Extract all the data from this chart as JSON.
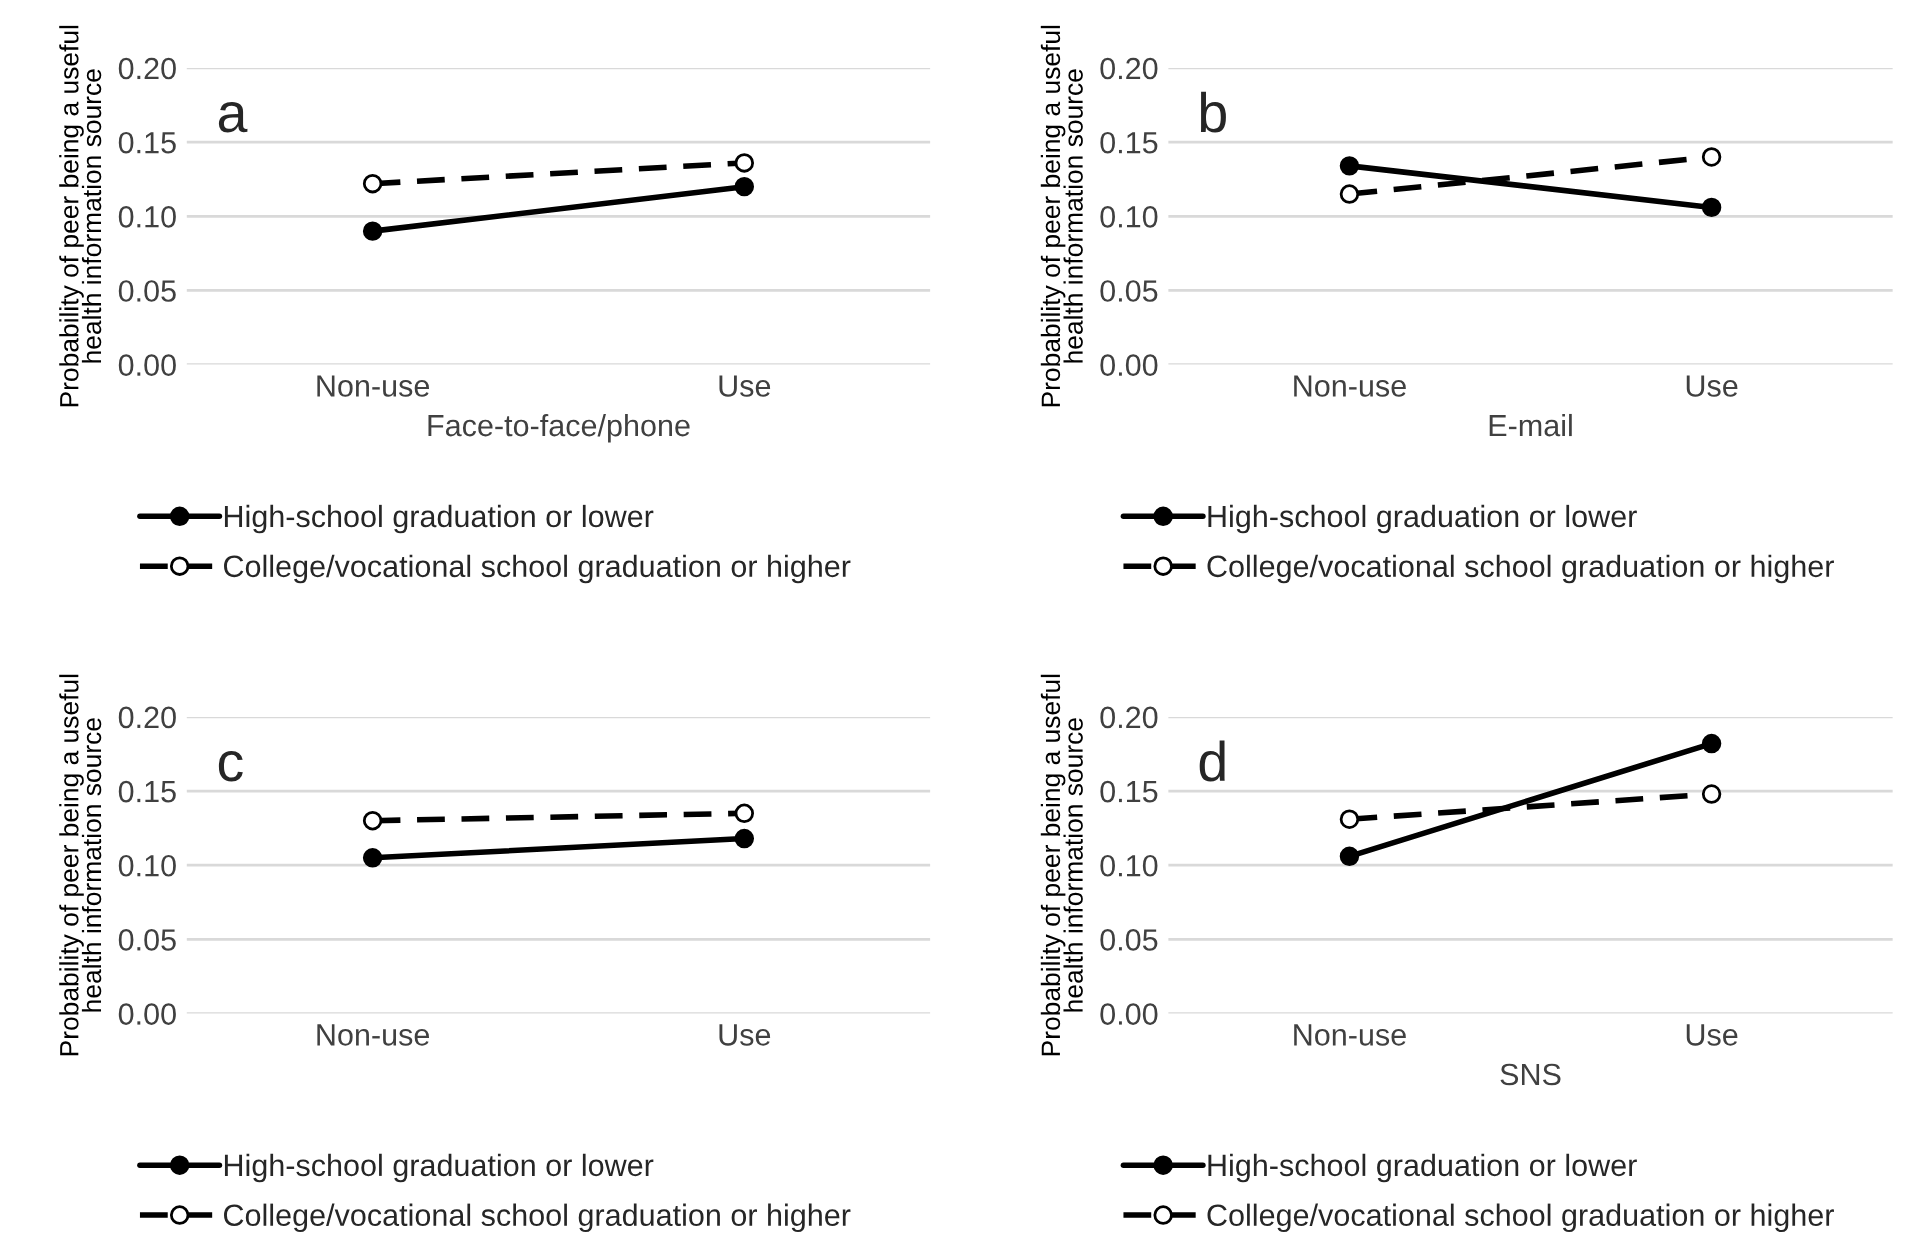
{
  "chart_data": [
    {
      "type": "line",
      "annotations": [
        "a"
      ],
      "xlabel": "Face-to-face/phone",
      "ylabel": "Probability of peer being a useful\nhealth information source",
      "categories": [
        "Non-use",
        "Use"
      ],
      "ylim": [
        0,
        0.2
      ],
      "yticks": [
        {
          "value": 0,
          "label": "0.00"
        },
        {
          "value": 0.05,
          "label": "0.05"
        },
        {
          "value": 0.1,
          "label": "0.10"
        },
        {
          "value": 0.15,
          "label": "0.15"
        },
        {
          "value": 0.2,
          "label": "0.20"
        }
      ],
      "grid": "y",
      "legend": "bottom",
      "marker": "circle",
      "series": [
        {
          "name": "High-school graduation or lower",
          "color": "#000000",
          "line_style": "solid",
          "values": [
            0.09,
            0.12
          ]
        },
        {
          "name": "College/vocational school graduation or higher",
          "color": "#000000",
          "line_style": "dashed",
          "values": [
            0.122,
            0.136
          ]
        }
      ]
    },
    {
      "type": "line",
      "annotations": [
        "b"
      ],
      "xlabel": "E-mail",
      "ylabel": "Probability of peer being a useful\nhealth information source",
      "categories": [
        "Non-use",
        "Use"
      ],
      "ylim": [
        0,
        0.2
      ],
      "yticks": [
        {
          "value": 0,
          "label": "0.00"
        },
        {
          "value": 0.05,
          "label": "0.05"
        },
        {
          "value": 0.1,
          "label": "0.10"
        },
        {
          "value": 0.15,
          "label": "0.15"
        },
        {
          "value": 0.2,
          "label": "0.20"
        }
      ],
      "grid": "y",
      "legend": "bottom",
      "marker": "circle",
      "series": [
        {
          "name": "High-school graduation or lower",
          "color": "#000000",
          "line_style": "solid",
          "values": [
            0.134,
            0.106
          ]
        },
        {
          "name": "College/vocational school graduation or higher",
          "color": "#000000",
          "line_style": "dashed",
          "values": [
            0.115,
            0.14
          ]
        }
      ]
    },
    {
      "type": "line",
      "annotations": [
        "c"
      ],
      "ylabel": "Probability of peer being a useful\nhealth information source",
      "categories": [
        "Non-use",
        "Use"
      ],
      "ylim": [
        0,
        0.2
      ],
      "yticks": [
        {
          "value": 0,
          "label": "0.00"
        },
        {
          "value": 0.05,
          "label": "0.05"
        },
        {
          "value": 0.1,
          "label": "0.10"
        },
        {
          "value": 0.15,
          "label": "0.15"
        },
        {
          "value": 0.2,
          "label": "0.20"
        }
      ],
      "grid": "y",
      "legend": "bottom",
      "marker": "circle",
      "series": [
        {
          "name": "High-school graduation or lower",
          "color": "#000000",
          "line_style": "solid",
          "values": [
            0.105,
            0.118
          ]
        },
        {
          "name": "College/vocational school graduation or higher",
          "color": "#000000",
          "line_style": "dashed",
          "values": [
            0.13,
            0.135
          ]
        }
      ]
    },
    {
      "type": "line",
      "annotations": [
        "d"
      ],
      "xlabel": "SNS",
      "ylabel": "Probability of peer being a useful\nhealth information source",
      "categories": [
        "Non-use",
        "Use"
      ],
      "ylim": [
        0,
        0.2
      ],
      "yticks": [
        {
          "value": 0,
          "label": "0.00"
        },
        {
          "value": 0.05,
          "label": "0.05"
        },
        {
          "value": 0.1,
          "label": "0.10"
        },
        {
          "value": 0.15,
          "label": "0.15"
        },
        {
          "value": 0.2,
          "label": "0.20"
        }
      ],
      "grid": "y",
      "legend": "bottom",
      "marker": "circle",
      "series": [
        {
          "name": "High-school graduation or lower",
          "color": "#000000",
          "line_style": "solid",
          "values": [
            0.106,
            0.182
          ]
        },
        {
          "name": "College/vocational school graduation or higher",
          "color": "#000000",
          "line_style": "dashed",
          "values": [
            0.131,
            0.148
          ]
        }
      ]
    }
  ]
}
